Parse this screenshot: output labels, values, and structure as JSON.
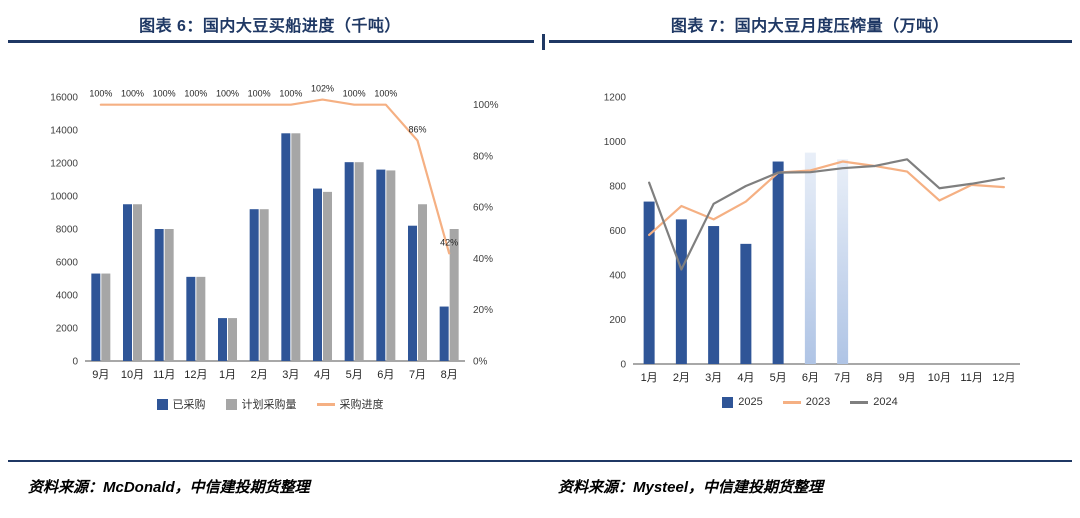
{
  "footer": {
    "left_source": "资料来源：McDonald，中信建投期货整理",
    "right_source": "资料来源：Mysteel，中信建投期货整理"
  },
  "colors": {
    "accent_navy": "#1F3864",
    "bar_blue": "#2F5597",
    "bar_gray": "#A6A6A6",
    "line_orange": "#F5B083",
    "line_gray": "#7F7F7F",
    "forecast_top": "#E9EFF8",
    "forecast_bottom": "#AFC4E5"
  },
  "chart_data": [
    {
      "type": "bar",
      "title": "图表 6：国内大豆买船进度（千吨）",
      "categories": [
        "9月",
        "10月",
        "11月",
        "12月",
        "1月",
        "2月",
        "3月",
        "4月",
        "5月",
        "6月",
        "7月",
        "8月"
      ],
      "series": [
        {
          "name": "已采购",
          "type": "bar",
          "color": "#2F5597",
          "values": [
            5300,
            9500,
            8000,
            5100,
            2600,
            9200,
            13800,
            10450,
            12050,
            11600,
            8200,
            3300
          ]
        },
        {
          "name": "计划采购量",
          "type": "bar",
          "color": "#A6A6A6",
          "values": [
            5300,
            9500,
            8000,
            5100,
            2600,
            9200,
            13800,
            10250,
            12050,
            11550,
            9500,
            8000
          ]
        },
        {
          "name": "采购进度",
          "type": "line",
          "axis": "right",
          "color": "#F5B083",
          "values": [
            100,
            100,
            100,
            100,
            100,
            100,
            100,
            102,
            100,
            100,
            86,
            42
          ],
          "point_labels": [
            "100%",
            "100%",
            "100%",
            "100%",
            "100%",
            "100%",
            "100%",
            "102%",
            "100%",
            "100%",
            "86%",
            "42%"
          ]
        }
      ],
      "left_axis": {
        "min": 0,
        "max": 16000,
        "step": 2000
      },
      "right_axis": {
        "min": 0,
        "tick_max": 100,
        "plot_max": 103,
        "step": 20,
        "suffix": "%"
      },
      "grid": false,
      "legend_position": "bottom"
    },
    {
      "type": "bar",
      "title": "图表 7：国内大豆月度压榨量（万吨）",
      "categories": [
        "1月",
        "2月",
        "3月",
        "4月",
        "5月",
        "6月",
        "7月",
        "8月",
        "9月",
        "10月",
        "11月",
        "12月"
      ],
      "series": [
        {
          "name": "2025",
          "type": "bar",
          "color": "#2F5597",
          "values": [
            730,
            650,
            620,
            540,
            910,
            950,
            920,
            null,
            null,
            null,
            null,
            null
          ],
          "forecast_indices": [
            5,
            6
          ]
        },
        {
          "name": "2023",
          "type": "line",
          "axis": "left",
          "color": "#F5B083",
          "values": [
            580,
            710,
            650,
            730,
            860,
            870,
            910,
            890,
            865,
            735,
            805,
            795
          ]
        },
        {
          "name": "2024",
          "type": "line",
          "axis": "left",
          "color": "#7F7F7F",
          "values": [
            815,
            425,
            720,
            800,
            860,
            862,
            880,
            890,
            920,
            790,
            810,
            835
          ]
        }
      ],
      "left_axis": {
        "min": 0,
        "max": 1200,
        "step": 200
      },
      "grid": false,
      "legend_position": "bottom"
    }
  ]
}
